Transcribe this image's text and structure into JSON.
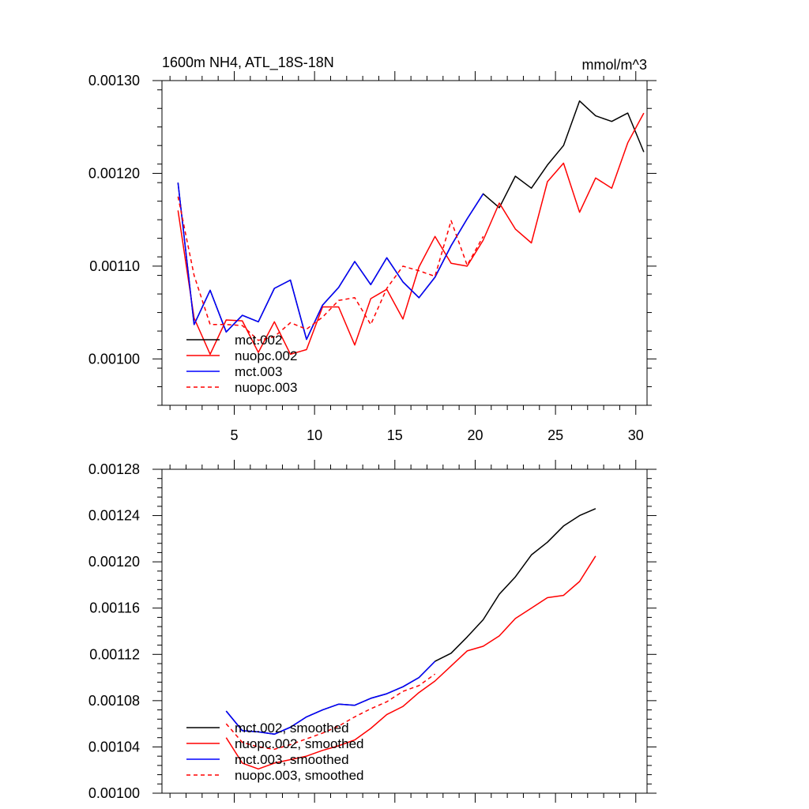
{
  "chart_data": [
    {
      "type": "line",
      "title": "1600m NH4, ATL_18S-18N",
      "units": "mmol/m^3",
      "xlim": [
        0.5,
        30.7
      ],
      "ylim": [
        0.00095,
        0.0013
      ],
      "xticks": [
        5,
        10,
        15,
        20,
        25,
        30
      ],
      "xtick_labels": [
        "5",
        "10",
        "15",
        "20",
        "25",
        "30"
      ],
      "yticks": [
        0.001,
        0.0011,
        0.0012,
        0.0013
      ],
      "ytick_labels": [
        "0.00100",
        "0.00110",
        "0.00120",
        "0.00130"
      ],
      "legend_location": "lower-left",
      "series": [
        {
          "name": "mct.002",
          "color": "#000000",
          "dash": "solid",
          "x": [
            1.5,
            2.5,
            3.5,
            4.5,
            5.5,
            6.5,
            7.5,
            8.5,
            9.5,
            10.5,
            11.5,
            12.5,
            13.5,
            14.5,
            15.5,
            16.5,
            17.5,
            18.5,
            19.5,
            20.5,
            21.5,
            22.5,
            23.5,
            24.5,
            25.5,
            26.5,
            27.5,
            28.5,
            29.5,
            30.5
          ],
          "values": [
            0.00119,
            0.001037,
            0.001074,
            0.001029,
            0.001047,
            0.00104,
            0.001076,
            0.001085,
            0.001021,
            0.001058,
            0.001077,
            0.001105,
            0.00108,
            0.001109,
            0.001083,
            0.001066,
            0.001088,
            0.001122,
            0.001151,
            0.001178,
            0.001163,
            0.001197,
            0.001184,
            0.001209,
            0.00123,
            0.001278,
            0.001262,
            0.001256,
            0.001265,
            0.001223
          ]
        },
        {
          "name": "nuopc.002",
          "color": "#ff0000",
          "dash": "solid",
          "x": [
            1.5,
            2.5,
            3.5,
            4.5,
            5.5,
            6.5,
            7.5,
            8.5,
            9.5,
            10.5,
            11.5,
            12.5,
            13.5,
            14.5,
            15.5,
            16.5,
            17.5,
            18.5,
            19.5,
            20.5,
            21.5,
            22.5,
            23.5,
            24.5,
            25.5,
            26.5,
            27.5,
            28.5,
            29.5,
            30.5
          ],
          "values": [
            0.00116,
            0.001044,
            0.001005,
            0.001042,
            0.001041,
            0.001007,
            0.00104,
            0.001005,
            0.00101,
            0.001056,
            0.001056,
            0.001015,
            0.001065,
            0.001075,
            0.001043,
            0.001099,
            0.001132,
            0.001103,
            0.0011,
            0.001128,
            0.001168,
            0.00114,
            0.001125,
            0.001191,
            0.001211,
            0.001158,
            0.001195,
            0.001184,
            0.001233,
            0.001265
          ]
        },
        {
          "name": "mct.003",
          "color": "#0000ff",
          "dash": "solid",
          "x": [
            1.5,
            2.5,
            3.5,
            4.5,
            5.5,
            6.5,
            7.5,
            8.5,
            9.5,
            10.5,
            11.5,
            12.5,
            13.5,
            14.5,
            15.5,
            16.5,
            17.5,
            18.5,
            19.5,
            20.5
          ],
          "values": [
            0.00119,
            0.001037,
            0.001074,
            0.001029,
            0.001047,
            0.00104,
            0.001076,
            0.001085,
            0.001021,
            0.001058,
            0.001077,
            0.001105,
            0.00108,
            0.001109,
            0.001083,
            0.001066,
            0.001088,
            0.001122,
            0.001151,
            0.001178
          ]
        },
        {
          "name": "nuopc.003",
          "color": "#ff0000",
          "dash": "dashed",
          "x": [
            1.5,
            2.5,
            3.5,
            4.5,
            5.5,
            6.5,
            7.5,
            8.5,
            9.5,
            10.5,
            11.5,
            12.5,
            13.5,
            14.5,
            15.5,
            16.5,
            17.5,
            18.5,
            19.5,
            20.5
          ],
          "values": [
            0.001175,
            0.00109,
            0.001037,
            0.001037,
            0.001036,
            0.00102,
            0.001024,
            0.001039,
            0.001032,
            0.001045,
            0.001063,
            0.001066,
            0.001037,
            0.001076,
            0.0011,
            0.001095,
            0.001089,
            0.001149,
            0.001101,
            0.001132
          ]
        }
      ]
    },
    {
      "type": "line",
      "title": "",
      "xlim": [
        0.5,
        30.7
      ],
      "ylim": [
        0.001,
        0.00128
      ],
      "xticks": [
        5,
        10,
        15,
        20,
        25,
        30
      ],
      "xtick_labels": [],
      "yticks": [
        0.001,
        0.00104,
        0.00108,
        0.00112,
        0.00116,
        0.0012,
        0.00124,
        0.00128
      ],
      "ytick_labels": [
        "0.00100",
        "0.00104",
        "0.00108",
        "0.00112",
        "0.00116",
        "0.00120",
        "0.00124",
        "0.00128"
      ],
      "legend_location": "lower-left",
      "series": [
        {
          "name": "mct.002, smoothed",
          "color": "#000000",
          "dash": "solid",
          "x": [
            4.5,
            5.5,
            6.5,
            7.5,
            8.5,
            9.5,
            10.5,
            11.5,
            12.5,
            13.5,
            14.5,
            15.5,
            16.5,
            17.5,
            18.5,
            19.5,
            20.5,
            21.5,
            22.5,
            23.5,
            24.5,
            25.5,
            26.5,
            27.5
          ],
          "values": [
            0.001071,
            0.001054,
            0.001053,
            0.001051,
            0.001057,
            0.001066,
            0.001072,
            0.001077,
            0.001076,
            0.001082,
            0.001086,
            0.001092,
            0.0011,
            0.001114,
            0.001121,
            0.001135,
            0.00115,
            0.001172,
            0.001187,
            0.001206,
            0.001217,
            0.001231,
            0.00124,
            0.001246
          ]
        },
        {
          "name": "nuopc.002, smoothed",
          "color": "#ff0000",
          "dash": "solid",
          "x": [
            4.5,
            5.5,
            6.5,
            7.5,
            8.5,
            9.5,
            10.5,
            11.5,
            12.5,
            13.5,
            14.5,
            15.5,
            16.5,
            17.5,
            18.5,
            19.5,
            20.5,
            21.5,
            22.5,
            23.5,
            24.5,
            25.5,
            26.5,
            27.5
          ],
          "values": [
            0.001048,
            0.001026,
            0.001021,
            0.001026,
            0.001029,
            0.001032,
            0.001037,
            0.001041,
            0.001046,
            0.001056,
            0.001068,
            0.001075,
            0.001087,
            0.001097,
            0.00111,
            0.001123,
            0.001127,
            0.001136,
            0.001151,
            0.00116,
            0.001169,
            0.001171,
            0.001183,
            0.001205
          ]
        },
        {
          "name": "mct.003, smoothed",
          "color": "#0000ff",
          "dash": "solid",
          "x": [
            4.5,
            5.5,
            6.5,
            7.5,
            8.5,
            9.5,
            10.5,
            11.5,
            12.5,
            13.5,
            14.5,
            15.5,
            16.5,
            17.5
          ],
          "values": [
            0.001071,
            0.001054,
            0.001053,
            0.001051,
            0.001057,
            0.001066,
            0.001072,
            0.001077,
            0.001076,
            0.001082,
            0.001086,
            0.001092,
            0.0011,
            0.001114
          ]
        },
        {
          "name": "nuopc.003, smoothed",
          "color": "#ff0000",
          "dash": "dashed",
          "x": [
            4.5,
            5.5,
            6.5,
            7.5,
            8.5,
            9.5,
            10.5,
            11.5,
            12.5,
            13.5,
            14.5,
            15.5,
            16.5,
            17.5
          ],
          "values": [
            0.00106,
            0.001044,
            0.00104,
            0.001038,
            0.001042,
            0.001047,
            0.001052,
            0.001058,
            0.001066,
            0.001073,
            0.001079,
            0.001088,
            0.001093,
            0.001103
          ]
        }
      ]
    }
  ]
}
